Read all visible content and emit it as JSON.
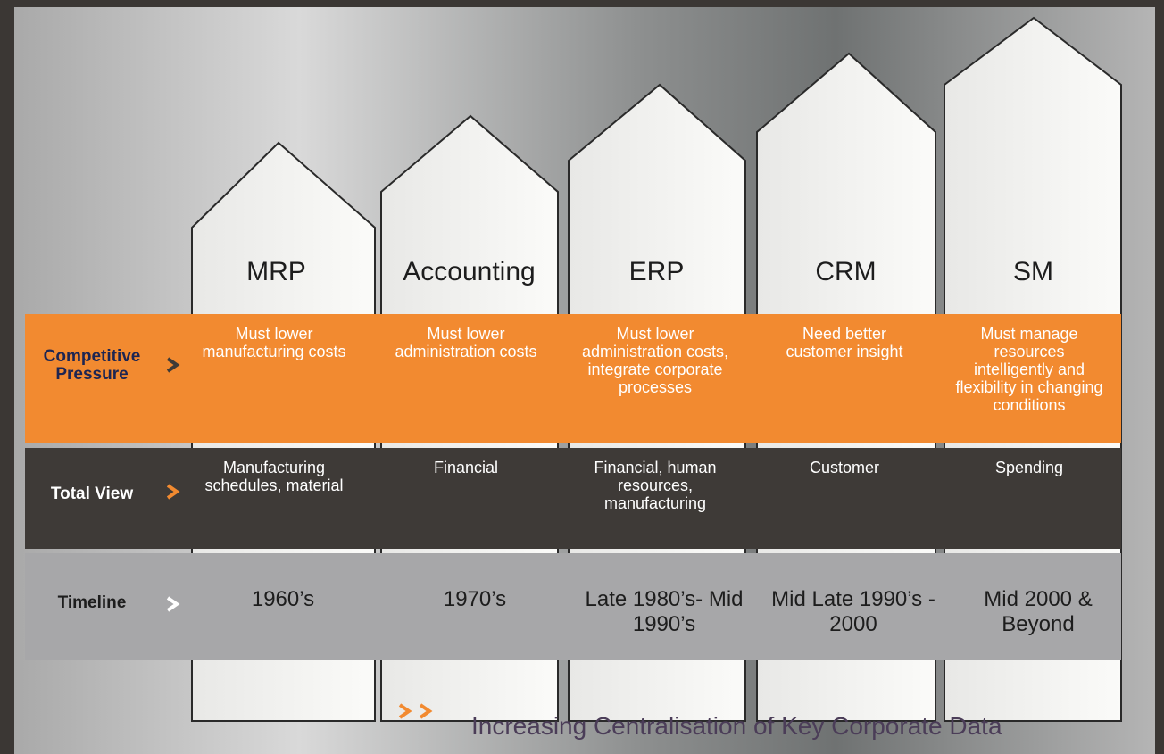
{
  "columns": [
    "MRP",
    "Accounting",
    "ERP",
    "CRM",
    "SM"
  ],
  "rows": [
    {
      "label": "Competitive Pressure",
      "cells": [
        "Must lower manufacturing costs",
        "Must lower administration costs",
        "Must lower administration costs, integrate corporate processes",
        "Need better customer insight",
        "Must manage resources intelligently and flexibility in changing conditions"
      ]
    },
    {
      "label": "Total View",
      "cells": [
        "Manufacturing schedules, material",
        "Financial",
        "Financial, human resources, manufacturing",
        "Customer",
        "Spending"
      ]
    },
    {
      "label": "Timeline",
      "cells": [
        "1960’s",
        "1970’s",
        "Late 1980’s- Mid 1990’s",
        "Mid Late 1990’s - 2000",
        "Mid 2000 & Beyond"
      ]
    }
  ],
  "footer": "Increasing Centralisation of Key Corporate Data"
}
